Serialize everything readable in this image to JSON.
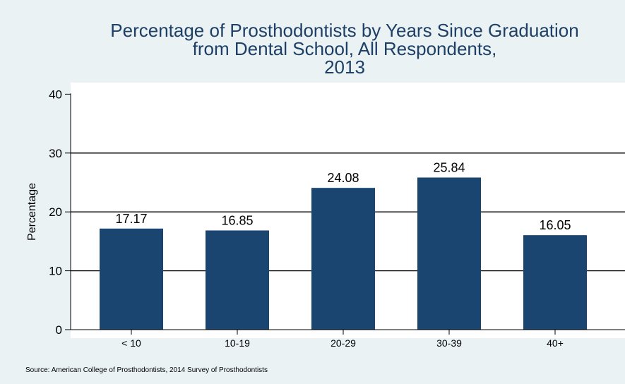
{
  "chart_data": {
    "type": "bar",
    "title_lines": [
      "Percentage of Prosthodontists by Years Since Graduation",
      "from Dental School, All Respondents,",
      "2013"
    ],
    "ylabel": "Percentage",
    "xlabel": "",
    "categories": [
      "< 10",
      "10-19",
      "20-29",
      "30-39",
      "40+"
    ],
    "values": [
      17.17,
      16.85,
      24.08,
      25.84,
      16.05
    ],
    "value_labels": [
      "17.17",
      "16.85",
      "24.08",
      "25.84",
      "16.05"
    ],
    "ylim": [
      0,
      40
    ],
    "yticks": [
      0,
      10,
      20,
      30,
      40
    ],
    "ytick_labels": [
      "0",
      "10",
      "20",
      "30",
      "40"
    ],
    "grid": true,
    "legend": "none",
    "source": "Source: American College of Prosthodontists, 2014 Survey of Prosthodontists",
    "colors": {
      "bar": "#1a4570",
      "title": "#1e3f66",
      "background": "#eaf2f3",
      "plot_background": "#ffffff"
    }
  }
}
